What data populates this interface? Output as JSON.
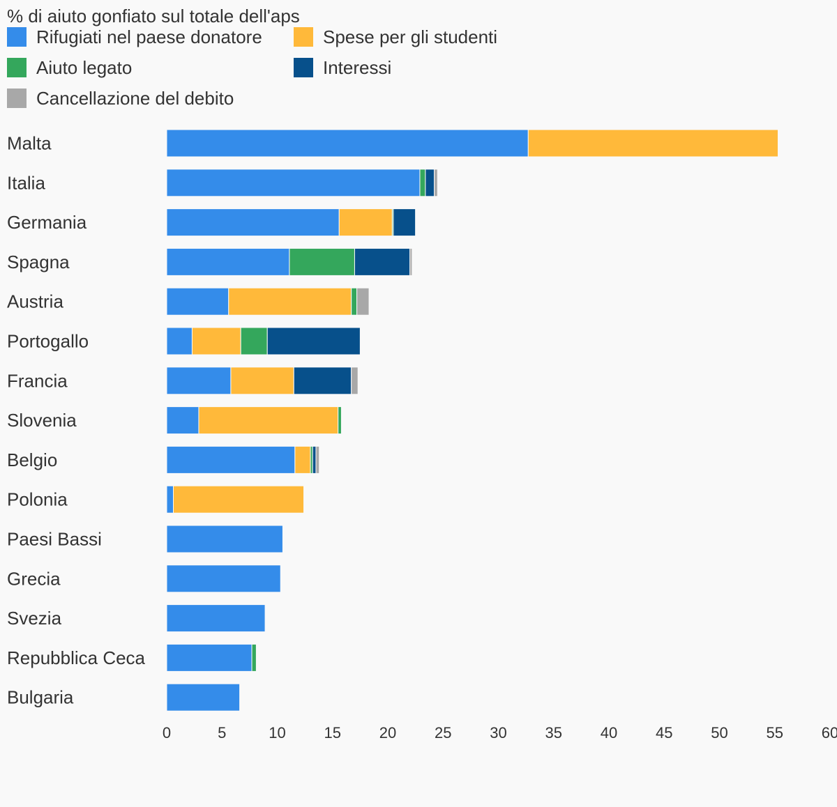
{
  "chart_data": {
    "type": "bar",
    "orientation": "horizontal",
    "stacked": true,
    "title": "% di aiuto gonfiato sul totale dell'aps",
    "xlabel": "",
    "ylabel": "",
    "xlim": [
      0,
      60
    ],
    "x_ticks": [
      0,
      5,
      10,
      15,
      20,
      25,
      30,
      35,
      40,
      45,
      50,
      55,
      60
    ],
    "grid": false,
    "legend_position": "top-left",
    "categories": [
      "Malta",
      "Italia",
      "Germania",
      "Spagna",
      "Austria",
      "Portogallo",
      "Francia",
      "Slovenia",
      "Belgio",
      "Polonia",
      "Paesi Bassi",
      "Grecia",
      "Svezia",
      "Repubblica Ceca",
      "Bulgaria"
    ],
    "series": [
      {
        "name": "Rifugiati nel paese donatore",
        "color": "#348cea",
        "values": [
          32.7,
          22.9,
          15.6,
          11.1,
          5.6,
          2.3,
          5.8,
          2.9,
          11.6,
          0.6,
          10.5,
          10.3,
          8.9,
          7.7,
          6.6
        ]
      },
      {
        "name": "Spese per gli studenti",
        "color": "#ffb93a",
        "values": [
          22.6,
          0,
          4.8,
          0,
          11.1,
          4.4,
          5.7,
          12.6,
          1.4,
          11.8,
          0,
          0,
          0,
          0,
          0
        ]
      },
      {
        "name": "Aiuto legato",
        "color": "#34a75c",
        "values": [
          0,
          0.5,
          0.1,
          5.9,
          0.5,
          2.4,
          0,
          0.3,
          0.2,
          0,
          0,
          0,
          0,
          0.4,
          0
        ]
      },
      {
        "name": "Interessi",
        "color": "#07508b",
        "values": [
          0,
          0.8,
          2.0,
          5.0,
          0,
          8.4,
          5.2,
          0,
          0.3,
          0,
          0,
          0,
          0,
          0,
          0
        ]
      },
      {
        "name": "Cancellazione del debito",
        "color": "#a8a8a8",
        "values": [
          0,
          0.3,
          0,
          0.2,
          1.1,
          0,
          0.6,
          0,
          0.3,
          0,
          0,
          0,
          0,
          0,
          0
        ]
      }
    ]
  }
}
